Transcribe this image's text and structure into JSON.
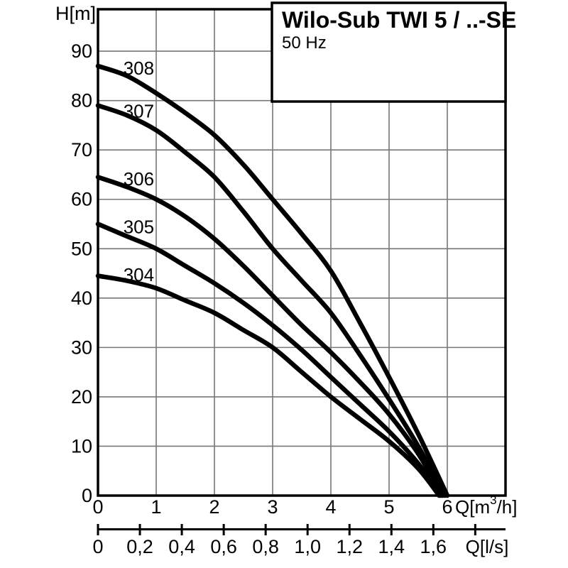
{
  "page": {
    "background": "#ffffff"
  },
  "title_box": {
    "title": "Wilo-Sub TWI 5 / ..-SE",
    "subtitle": "50 Hz"
  },
  "chart_data": {
    "type": "line",
    "title": "Wilo-Sub TWI 5 / ..-SE",
    "subtitle": "50 Hz",
    "grid": true,
    "legend_position": "inline-labels",
    "colors": {
      "curve": "#000000",
      "grid": "#777777",
      "frame": "#000000",
      "text": "#000000",
      "box_fill": "#ffffff"
    },
    "y_axis": {
      "label": "H[m]",
      "min": 0,
      "max": 98.5,
      "ticks": [
        0,
        10,
        20,
        30,
        40,
        50,
        60,
        70,
        80,
        90
      ]
    },
    "x_axis": {
      "label": "Q[m³/h]",
      "label_parts": {
        "pre": "Q[m",
        "sup": "3",
        "post": "/h]"
      },
      "min": 0,
      "max": 7,
      "ticks": [
        0,
        1,
        2,
        3,
        4,
        5,
        6
      ]
    },
    "x2_axis": {
      "label": "Q[l/s]",
      "unit_to_primary": 3.6,
      "ticks": [
        {
          "value": 0.0,
          "label": "0"
        },
        {
          "value": 0.2,
          "label": "0,2"
        },
        {
          "value": 0.4,
          "label": "0,4"
        },
        {
          "value": 0.6,
          "label": "0,6"
        },
        {
          "value": 0.8,
          "label": "0,8"
        },
        {
          "value": 1.0,
          "label": "1,0"
        },
        {
          "value": 1.2,
          "label": "1,2"
        },
        {
          "value": 1.4,
          "label": "1,4"
        },
        {
          "value": 1.6,
          "label": "1,6"
        },
        {
          "value": 1.8,
          "label": ""
        }
      ]
    },
    "series": [
      {
        "name": "308",
        "label": "308",
        "label_at": [
          0.7,
          86.6
        ],
        "points": [
          [
            0,
            87
          ],
          [
            0.5,
            85
          ],
          [
            1,
            81.5
          ],
          [
            1.5,
            77.5
          ],
          [
            2,
            73
          ],
          [
            2.5,
            67
          ],
          [
            3,
            60
          ],
          [
            3.5,
            53
          ],
          [
            4,
            45.5
          ],
          [
            4.5,
            35
          ],
          [
            5,
            24
          ],
          [
            5.5,
            12.5
          ],
          [
            6,
            0
          ]
        ]
      },
      {
        "name": "307",
        "label": "307",
        "label_at": [
          0.7,
          77.9
        ],
        "points": [
          [
            0,
            79
          ],
          [
            0.5,
            77
          ],
          [
            1,
            74
          ],
          [
            1.5,
            69.5
          ],
          [
            2,
            64.5
          ],
          [
            2.5,
            57.5
          ],
          [
            3,
            50
          ],
          [
            3.5,
            43.5
          ],
          [
            4,
            37
          ],
          [
            4.5,
            28.5
          ],
          [
            5,
            19.5
          ],
          [
            5.5,
            10
          ],
          [
            5.96,
            0
          ]
        ]
      },
      {
        "name": "306",
        "label": "306",
        "label_at": [
          0.7,
          64.1
        ],
        "points": [
          [
            0,
            64.5
          ],
          [
            0.5,
            62.5
          ],
          [
            1,
            60
          ],
          [
            1.5,
            56.5
          ],
          [
            2,
            52
          ],
          [
            2.5,
            46.5
          ],
          [
            3,
            40.5
          ],
          [
            3.5,
            34.5
          ],
          [
            4,
            29
          ],
          [
            4.5,
            23
          ],
          [
            5,
            16.5
          ],
          [
            5.5,
            8.5
          ],
          [
            5.92,
            0
          ]
        ]
      },
      {
        "name": "305",
        "label": "305",
        "label_at": [
          0.7,
          54.4
        ],
        "points": [
          [
            0,
            55
          ],
          [
            0.5,
            52.5
          ],
          [
            1,
            50
          ],
          [
            1.5,
            46.5
          ],
          [
            2,
            43
          ],
          [
            2.5,
            39
          ],
          [
            3,
            34.5
          ],
          [
            3.5,
            29.5
          ],
          [
            4,
            24
          ],
          [
            4.5,
            18.5
          ],
          [
            5,
            13
          ],
          [
            5.5,
            6.5
          ],
          [
            5.89,
            0
          ]
        ]
      },
      {
        "name": "304",
        "label": "304",
        "label_at": [
          0.7,
          44.7
        ],
        "points": [
          [
            0,
            44.5
          ],
          [
            0.5,
            43.5
          ],
          [
            1,
            42
          ],
          [
            1.5,
            39.5
          ],
          [
            2,
            37
          ],
          [
            2.5,
            33.5
          ],
          [
            3,
            30
          ],
          [
            3.5,
            25
          ],
          [
            4,
            20
          ],
          [
            4.5,
            15.5
          ],
          [
            5,
            11
          ],
          [
            5.5,
            5.5
          ],
          [
            5.86,
            0
          ]
        ]
      }
    ]
  }
}
